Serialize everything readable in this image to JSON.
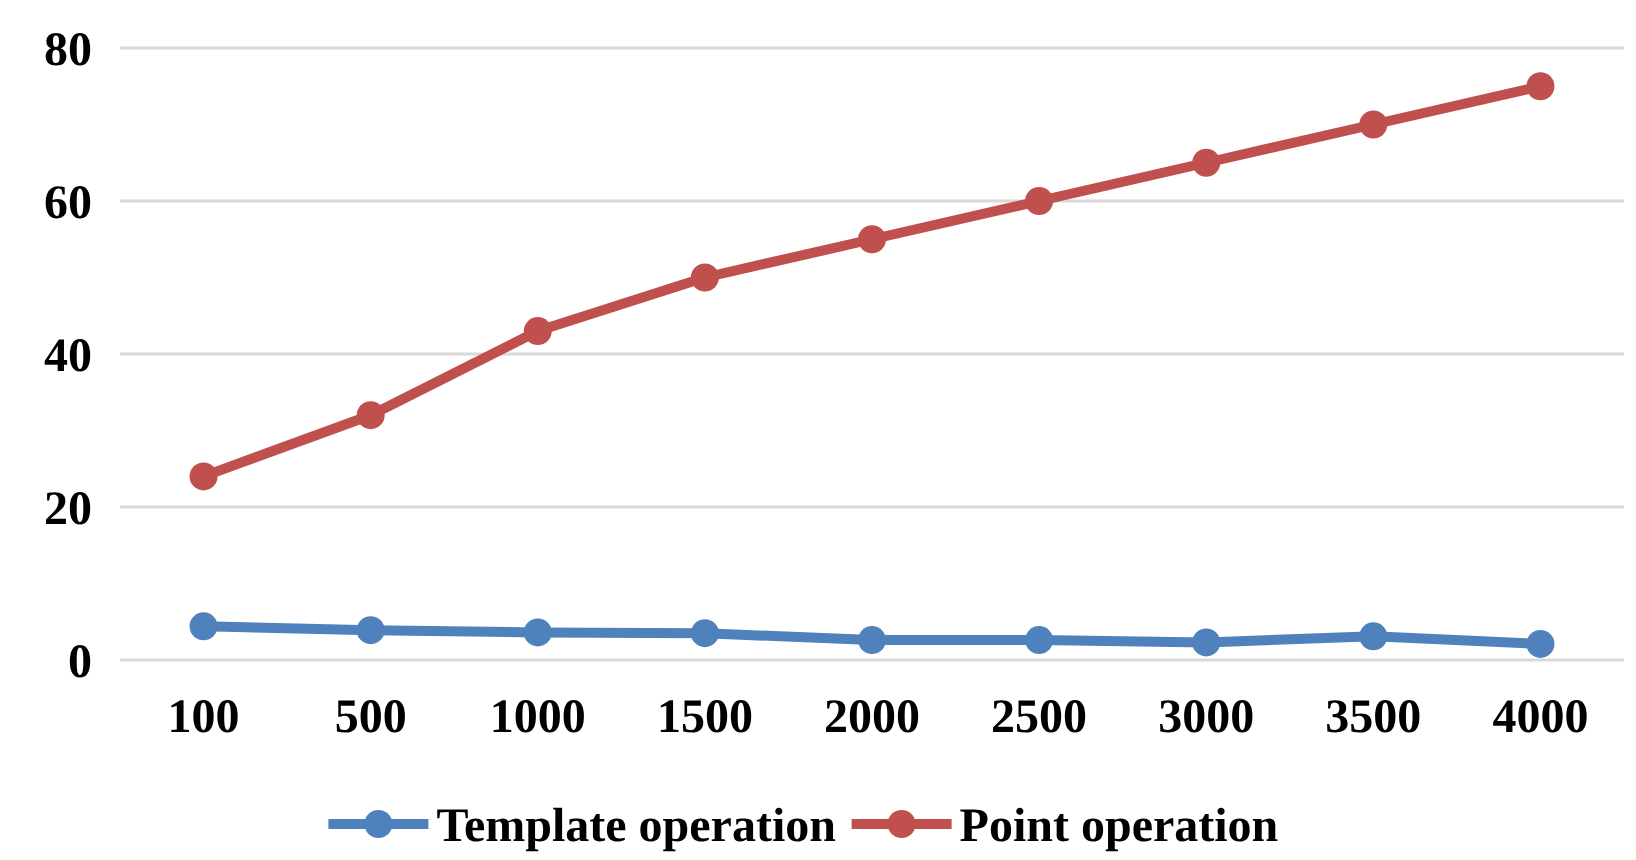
{
  "chart_data": {
    "type": "line",
    "categories": [
      "100",
      "500",
      "1000",
      "1500",
      "2000",
      "2500",
      "3000",
      "3500",
      "4000"
    ],
    "series": [
      {
        "name": "Template operation",
        "color": "#4f81bd",
        "values": [
          4.4,
          3.9,
          3.6,
          3.5,
          2.6,
          2.6,
          2.3,
          3.1,
          2.1
        ]
      },
      {
        "name": "Point operation",
        "color": "#c0504d",
        "values": [
          24,
          32,
          43,
          50,
          55,
          60,
          65,
          70,
          75
        ]
      }
    ],
    "ylim": [
      0,
      80
    ],
    "yticks": [
      0,
      20,
      40,
      60,
      80
    ],
    "grid": "y",
    "legend": "bottom",
    "marker": "circle",
    "line_style": "solid"
  }
}
